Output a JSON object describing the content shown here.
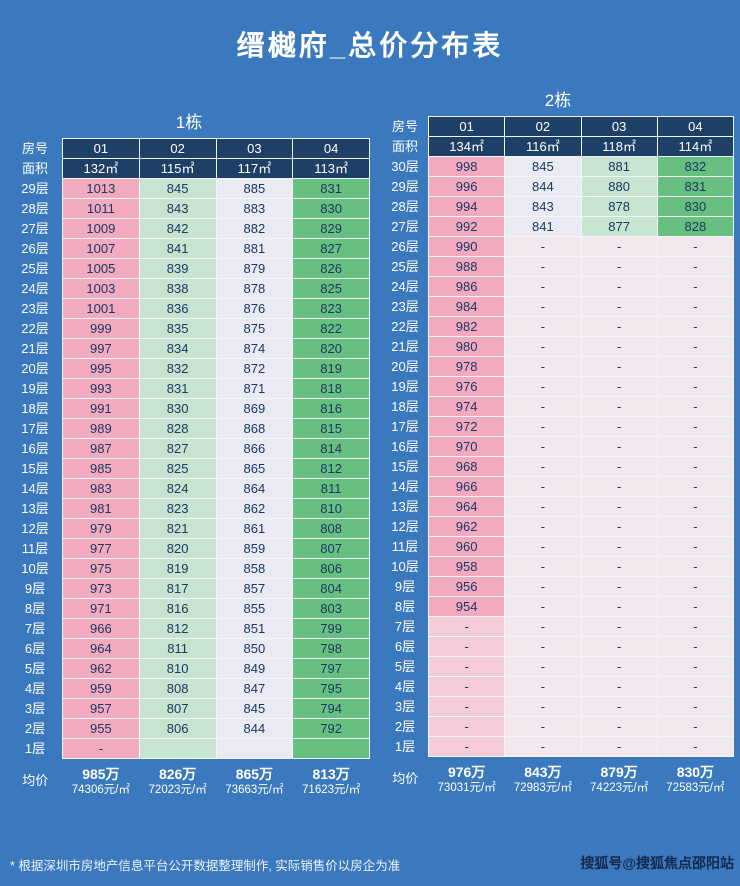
{
  "page": {
    "title": "缙樾府_总价分布表",
    "footnote": "* 根据深圳市房地产信息平台公开数据整理制作, 实际销售价以房企为准",
    "watermark": "搜狐号@搜狐焦点邵阳站"
  },
  "colors": {
    "background": "#3a79bd",
    "header_cell": "#1f4066",
    "cell_text": "#1d3763",
    "pink": "#f2aabf",
    "pink_light": "#f5cbda",
    "green_light": "#c6e4cf",
    "white_cell": "#eaeaf2",
    "green_mid": "#67c07f",
    "pale_cell": "#f2e7ed"
  },
  "chart_data": [
    {
      "type": "table",
      "title": "1栋",
      "row_label": "房号",
      "area_label": "面积",
      "avg_label": "均价",
      "units": [
        "01",
        "02",
        "03",
        "04"
      ],
      "areas": [
        "132㎡",
        "115㎡",
        "117㎡",
        "113㎡"
      ],
      "col_colors": [
        "pink",
        "green_light",
        "white_cell",
        "green_mid"
      ],
      "dash_colors": [
        "pink",
        "green_light",
        "white_cell",
        "green_mid"
      ],
      "floors": [
        "29层",
        "28层",
        "27层",
        "26层",
        "25层",
        "24层",
        "23层",
        "22层",
        "21层",
        "20层",
        "19层",
        "18层",
        "17层",
        "16层",
        "15层",
        "14层",
        "13层",
        "12层",
        "11层",
        "10层",
        "9层",
        "8层",
        "7层",
        "6层",
        "5层",
        "4层",
        "3层",
        "2层",
        "1层"
      ],
      "values": [
        [
          1013,
          845,
          885,
          831
        ],
        [
          1011,
          843,
          883,
          830
        ],
        [
          1009,
          842,
          882,
          829
        ],
        [
          1007,
          841,
          881,
          827
        ],
        [
          1005,
          839,
          879,
          826
        ],
        [
          1003,
          838,
          878,
          825
        ],
        [
          1001,
          836,
          876,
          823
        ],
        [
          999,
          835,
          875,
          822
        ],
        [
          997,
          834,
          874,
          820
        ],
        [
          995,
          832,
          872,
          819
        ],
        [
          993,
          831,
          871,
          818
        ],
        [
          991,
          830,
          869,
          816
        ],
        [
          989,
          828,
          868,
          815
        ],
        [
          987,
          827,
          866,
          814
        ],
        [
          985,
          825,
          865,
          812
        ],
        [
          983,
          824,
          864,
          811
        ],
        [
          981,
          823,
          862,
          810
        ],
        [
          979,
          821,
          861,
          808
        ],
        [
          977,
          820,
          859,
          807
        ],
        [
          975,
          819,
          858,
          806
        ],
        [
          973,
          817,
          857,
          804
        ],
        [
          971,
          816,
          855,
          803
        ],
        [
          966,
          812,
          851,
          799
        ],
        [
          964,
          811,
          850,
          798
        ],
        [
          962,
          810,
          849,
          797
        ],
        [
          959,
          808,
          847,
          795
        ],
        [
          957,
          807,
          845,
          794
        ],
        [
          955,
          806,
          844,
          792
        ],
        [
          "-",
          "",
          "",
          ""
        ]
      ],
      "averages": [
        [
          "985万",
          "74306元/㎡"
        ],
        [
          "826万",
          "72023元/㎡"
        ],
        [
          "865万",
          "73663元/㎡"
        ],
        [
          "813万",
          "71623元/㎡"
        ]
      ]
    },
    {
      "type": "table",
      "title": "2栋",
      "row_label": "房号",
      "area_label": "面积",
      "avg_label": "均价",
      "units": [
        "01",
        "02",
        "03",
        "04"
      ],
      "areas": [
        "134㎡",
        "116㎡",
        "118㎡",
        "114㎡"
      ],
      "col_colors": [
        "pink",
        "white_cell",
        "green_light",
        "green_mid"
      ],
      "dash_colors": [
        "pink_light",
        "pale_cell",
        "pale_cell",
        "pale_cell"
      ],
      "floors": [
        "30层",
        "29层",
        "28层",
        "27层",
        "26层",
        "25层",
        "24层",
        "23层",
        "22层",
        "21层",
        "20层",
        "19层",
        "18层",
        "17层",
        "16层",
        "15层",
        "14层",
        "13层",
        "12层",
        "11层",
        "10层",
        "9层",
        "8层",
        "7层",
        "6层",
        "5层",
        "4层",
        "3层",
        "2层",
        "1层"
      ],
      "values": [
        [
          998,
          845,
          881,
          832
        ],
        [
          996,
          844,
          880,
          831
        ],
        [
          994,
          843,
          878,
          830
        ],
        [
          992,
          841,
          877,
          828
        ],
        [
          990,
          "-",
          "-",
          "-"
        ],
        [
          988,
          "-",
          "-",
          "-"
        ],
        [
          986,
          "-",
          "-",
          "-"
        ],
        [
          984,
          "-",
          "-",
          "-"
        ],
        [
          982,
          "-",
          "-",
          "-"
        ],
        [
          980,
          "-",
          "-",
          "-"
        ],
        [
          978,
          "-",
          "-",
          "-"
        ],
        [
          976,
          "-",
          "-",
          "-"
        ],
        [
          974,
          "-",
          "-",
          "-"
        ],
        [
          972,
          "-",
          "-",
          "-"
        ],
        [
          970,
          "-",
          "-",
          "-"
        ],
        [
          968,
          "-",
          "-",
          "-"
        ],
        [
          966,
          "-",
          "-",
          "-"
        ],
        [
          964,
          "-",
          "-",
          "-"
        ],
        [
          962,
          "-",
          "-",
          "-"
        ],
        [
          960,
          "-",
          "-",
          "-"
        ],
        [
          958,
          "-",
          "-",
          "-"
        ],
        [
          956,
          "-",
          "-",
          "-"
        ],
        [
          954,
          "-",
          "-",
          "-"
        ],
        [
          "-",
          "-",
          "-",
          "-"
        ],
        [
          "-",
          "-",
          "-",
          "-"
        ],
        [
          "-",
          "-",
          "-",
          "-"
        ],
        [
          "-",
          "-",
          "-",
          "-"
        ],
        [
          "-",
          "-",
          "-",
          "-"
        ],
        [
          "-",
          "-",
          "-",
          "-"
        ],
        [
          "-",
          "-",
          "-",
          "-"
        ]
      ],
      "averages": [
        [
          "976万",
          "73031元/㎡"
        ],
        [
          "843万",
          "72983元/㎡"
        ],
        [
          "879万",
          "74223元/㎡"
        ],
        [
          "830万",
          "72583元/㎡"
        ]
      ]
    }
  ]
}
